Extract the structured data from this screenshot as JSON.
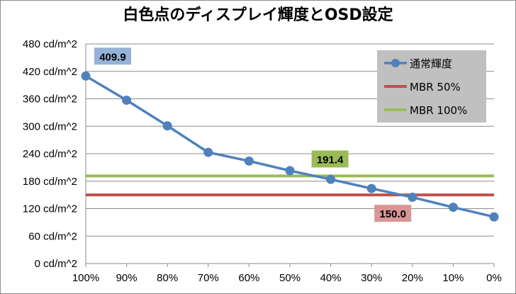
{
  "chart_data": {
    "type": "line",
    "title": "白色点のディスプレイ輝度とOSD設定",
    "categories": [
      "100%",
      "90%",
      "80%",
      "70%",
      "60%",
      "50%",
      "40%",
      "30%",
      "20%",
      "10%",
      "0%"
    ],
    "y_ticks": [
      "0 cd/m^2",
      "60 cd/m^2",
      "120 cd/m^2",
      "180 cd/m^2",
      "240 cd/m^2",
      "300 cd/m^2",
      "360 cd/m^2",
      "420 cd/m^2",
      "480 cd/m^2"
    ],
    "ylim": [
      0,
      480
    ],
    "grid": "horizontal",
    "legend_position": "top-right",
    "series": [
      {
        "name": "通常輝度",
        "kind": "line-markers",
        "color": "#4f81bd",
        "values": [
          409.9,
          357,
          301,
          243,
          224,
          203,
          184,
          164,
          145,
          123,
          102
        ]
      },
      {
        "name": "MBR 50%",
        "kind": "constant",
        "color": "#c0504d",
        "values": [
          150.0,
          150.0,
          150.0,
          150.0,
          150.0,
          150.0,
          150.0,
          150.0,
          150.0,
          150.0,
          150.0
        ]
      },
      {
        "name": "MBR 100%",
        "kind": "constant",
        "color": "#9bbb59",
        "values": [
          191.4,
          191.4,
          191.4,
          191.4,
          191.4,
          191.4,
          191.4,
          191.4,
          191.4,
          191.4,
          191.4
        ]
      }
    ],
    "annotations": [
      {
        "text": "409.9",
        "series": 0,
        "x_index": 0,
        "box_color": "#95b3d7",
        "anchor": "upper-right"
      },
      {
        "text": "191.4",
        "series": 2,
        "x_index": 6,
        "box_color": "#9bbb59",
        "anchor": "above-left"
      },
      {
        "text": "150.0",
        "series": 1,
        "x_index": 7,
        "box_color": "#d99694",
        "anchor": "below-right"
      }
    ],
    "legend_bg": "#c0c0c0",
    "gridline_color": "#8c8c8c"
  }
}
